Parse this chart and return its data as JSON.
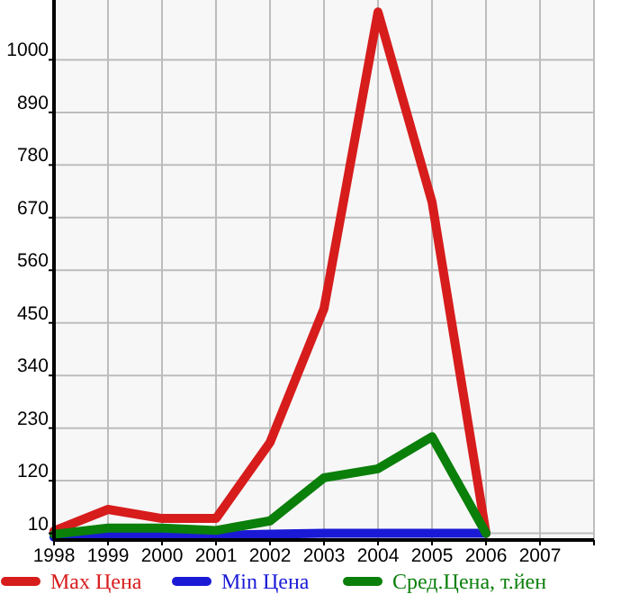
{
  "chart_data": {
    "type": "line",
    "x": [
      1998,
      1999,
      2000,
      2001,
      2002,
      2003,
      2004,
      2005,
      2006
    ],
    "series": [
      {
        "name": "Max Цена",
        "color": "#d71c1c",
        "values": [
          15,
          60,
          41,
          41,
          200,
          480,
          1100,
          703,
          10
        ]
      },
      {
        "name": "Min Цена",
        "color": "#1a1ad6",
        "values": [
          2,
          6,
          6,
          6,
          8,
          10,
          10,
          10,
          10
        ]
      },
      {
        "name": "Сред.Цена, т.йен",
        "color": "#0a7f0a",
        "values": [
          8,
          21,
          21,
          16,
          36,
          126,
          145,
          212,
          10
        ]
      }
    ],
    "xlim": [
      1998,
      2008
    ],
    "xticks": [
      1998,
      1999,
      2000,
      2001,
      2002,
      2003,
      2004,
      2005,
      2006,
      2007
    ],
    "ylim": [
      -4,
      1125
    ],
    "yticks": [
      10,
      120,
      230,
      340,
      450,
      560,
      670,
      780,
      890,
      1000
    ],
    "grid": true,
    "legend": "bottom",
    "marker": "none",
    "line_style": "solid"
  }
}
